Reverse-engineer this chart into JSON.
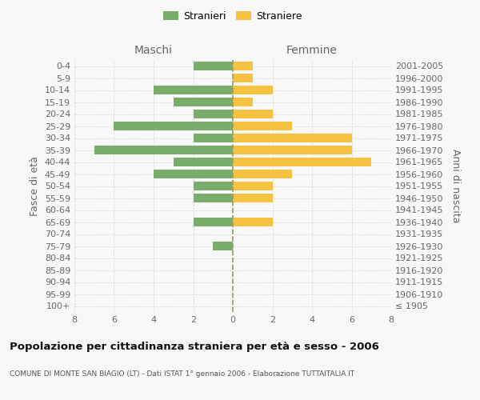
{
  "age_groups": [
    "100+",
    "95-99",
    "90-94",
    "85-89",
    "80-84",
    "75-79",
    "70-74",
    "65-69",
    "60-64",
    "55-59",
    "50-54",
    "45-49",
    "40-44",
    "35-39",
    "30-34",
    "25-29",
    "20-24",
    "15-19",
    "10-14",
    "5-9",
    "0-4"
  ],
  "birth_years": [
    "≤ 1905",
    "1906-1910",
    "1911-1915",
    "1916-1920",
    "1921-1925",
    "1926-1930",
    "1931-1935",
    "1936-1940",
    "1941-1945",
    "1946-1950",
    "1951-1955",
    "1956-1960",
    "1961-1965",
    "1966-1970",
    "1971-1975",
    "1976-1980",
    "1981-1985",
    "1986-1990",
    "1991-1995",
    "1996-2000",
    "2001-2005"
  ],
  "males": [
    0,
    0,
    0,
    0,
    0,
    1,
    0,
    2,
    0,
    2,
    2,
    4,
    3,
    7,
    2,
    6,
    2,
    3,
    4,
    0,
    2
  ],
  "females": [
    0,
    0,
    0,
    0,
    0,
    0,
    0,
    2,
    0,
    2,
    2,
    3,
    7,
    6,
    6,
    3,
    2,
    1,
    2,
    1,
    1
  ],
  "male_color": "#7aad6b",
  "female_color": "#f5c242",
  "grid_color": "#dddddd",
  "title": "Popolazione per cittadinanza straniera per età e sesso - 2006",
  "subtitle": "COMUNE DI MONTE SAN BIAGIO (LT) - Dati ISTAT 1° gennaio 2006 - Elaborazione TUTTAITALIA.IT",
  "xlabel_left": "Maschi",
  "xlabel_right": "Femmine",
  "ylabel_left": "Fasce di età",
  "ylabel_right": "Anni di nascita",
  "legend_male": "Stranieri",
  "legend_female": "Straniere",
  "xlim": 8,
  "background_color": "#f8f8f8",
  "bar_height": 0.75
}
